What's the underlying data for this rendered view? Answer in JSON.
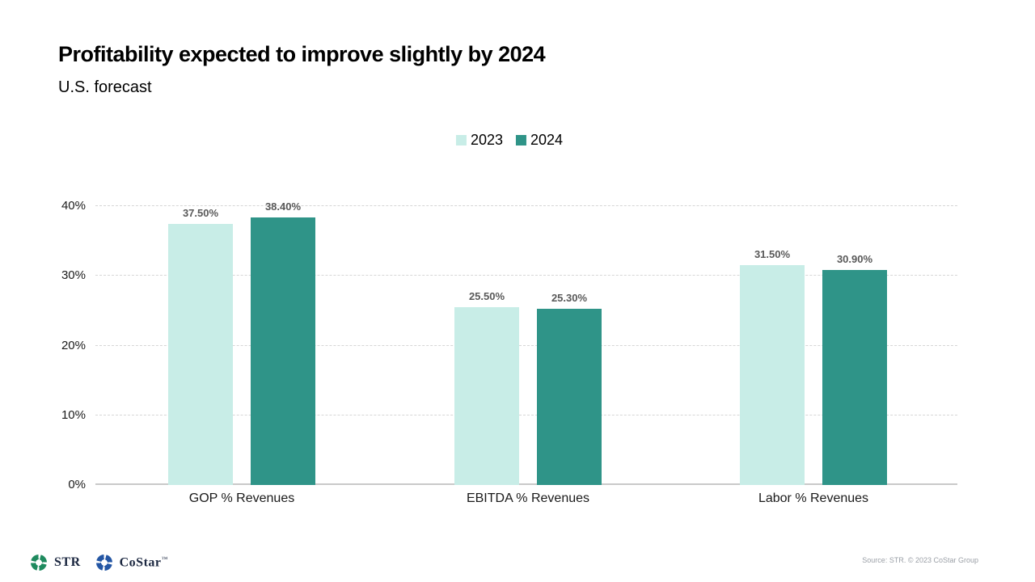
{
  "slide": {
    "title": "Profitability expected to improve slightly by 2024",
    "subtitle": "U.S. forecast"
  },
  "chart_data": {
    "type": "bar",
    "title": "Profitability expected to improve slightly by 2024",
    "subtitle": "U.S. forecast",
    "categories": [
      "GOP % Revenues",
      "EBITDA % Revenues",
      "Labor % Revenues"
    ],
    "series": [
      {
        "name": "2023",
        "color": "#c8ede7",
        "values": [
          37.5,
          25.5,
          31.5
        ],
        "labels": [
          "37.50%",
          "25.50%",
          "31.50%"
        ]
      },
      {
        "name": "2024",
        "color": "#2f9488",
        "values": [
          38.4,
          25.3,
          30.9
        ],
        "labels": [
          "38.40%",
          "25.30%",
          "30.90%"
        ]
      }
    ],
    "xlabel": "",
    "ylabel": "",
    "ylim": [
      0,
      40
    ],
    "yticks": [
      0,
      10,
      20,
      30,
      40
    ],
    "ytick_labels": [
      "0%",
      "10%",
      "20%",
      "30%",
      "40%"
    ],
    "grid": "horizontal-dashed",
    "legend_position": "top-center",
    "value_label_color": "#595959"
  },
  "footer": {
    "str_logo_text": "STR",
    "costar_logo_text": "CoStar",
    "costar_tm": "™",
    "str_icon_color": "#1e8a5e",
    "costar_icon_color": "#2456a4",
    "source": "Source: STR. © 2023 CoStar Group"
  }
}
